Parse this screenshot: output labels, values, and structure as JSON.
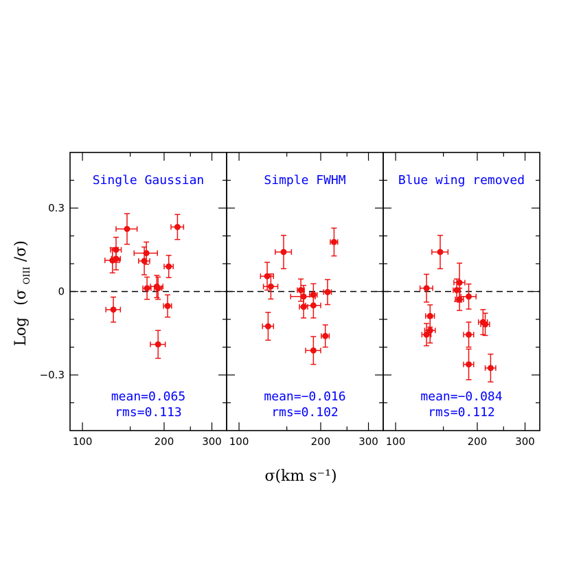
{
  "chart_data": {
    "type": "scatter",
    "xlabel": "σ(km s⁻¹)",
    "ylabel_main": "Log",
    "ylabel_ratio": "(σ",
    "ylabel_sub": "OIII",
    "ylabel_tail": "/σ)",
    "x_scale": "log",
    "xlim": [
      90,
      340
    ],
    "ylim": [
      -0.5,
      0.5
    ],
    "x_ticks": [
      {
        "v": 100,
        "label": "100"
      },
      {
        "v": 200,
        "label": "200"
      },
      {
        "v": 300,
        "label": "300"
      }
    ],
    "y_ticks": [
      {
        "v": 0.3,
        "label": "0.3"
      },
      {
        "v": 0,
        "label": "0"
      },
      {
        "v": -0.3,
        "label": "−0.3"
      }
    ],
    "reference_line": 0,
    "colors": {
      "points": "#ee1111",
      "text": "#0000ff",
      "frame": "#000000"
    },
    "panels": [
      {
        "title": "Single Gaussian",
        "mean_label": "mean=0.065",
        "rms_label": "rms=0.113",
        "points": [
          {
            "x": 129,
            "y": 0.112,
            "xerr": 8,
            "yerr": 0.045
          },
          {
            "x": 133,
            "y": 0.15,
            "xerr": 6,
            "yerr": 0.045
          },
          {
            "x": 133,
            "y": 0.118,
            "xerr": 5,
            "yerr": 0.04
          },
          {
            "x": 146,
            "y": 0.225,
            "xerr": 13,
            "yerr": 0.055
          },
          {
            "x": 169,
            "y": 0.11,
            "xerr": 8,
            "yerr": 0.05
          },
          {
            "x": 172,
            "y": 0.138,
            "xerr": 17,
            "yerr": 0.04
          },
          {
            "x": 173,
            "y": 0.012,
            "xerr": 6,
            "yerr": 0.04
          },
          {
            "x": 188,
            "y": 0.018,
            "xerr": 10,
            "yerr": 0.04
          },
          {
            "x": 190,
            "y": 0.012,
            "xerr": 6,
            "yerr": 0.04
          },
          {
            "x": 208,
            "y": 0.09,
            "xerr": 8,
            "yerr": 0.04
          },
          {
            "x": 224,
            "y": 0.232,
            "xerr": 12,
            "yerr": 0.045
          },
          {
            "x": 130,
            "y": -0.065,
            "xerr": 8,
            "yerr": 0.045
          },
          {
            "x": 206,
            "y": -0.052,
            "xerr": 7,
            "yerr": 0.04
          },
          {
            "x": 190,
            "y": -0.19,
            "xerr": 12,
            "yerr": 0.05
          }
        ]
      },
      {
        "title": "Simple FWHM",
        "mean_label": "mean=−0.016",
        "rms_label": "rms=0.102",
        "points": [
          {
            "x": 127,
            "y": 0.055,
            "xerr": 7,
            "yerr": 0.05
          },
          {
            "x": 131,
            "y": 0.018,
            "xerr": 8,
            "yerr": 0.045
          },
          {
            "x": 146,
            "y": 0.142,
            "xerr": 10,
            "yerr": 0.06
          },
          {
            "x": 169,
            "y": 0.005,
            "xerr": 5,
            "yerr": 0.04
          },
          {
            "x": 173,
            "y": -0.018,
            "xerr": 18,
            "yerr": 0.04
          },
          {
            "x": 173,
            "y": -0.055,
            "xerr": 6,
            "yerr": 0.04
          },
          {
            "x": 188,
            "y": -0.012,
            "xerr": 6,
            "yerr": 0.04
          },
          {
            "x": 188,
            "y": -0.05,
            "xerr": 12,
            "yerr": 0.045
          },
          {
            "x": 212,
            "y": -0.002,
            "xerr": 7,
            "yerr": 0.045
          },
          {
            "x": 224,
            "y": 0.178,
            "xerr": 7,
            "yerr": 0.05
          },
          {
            "x": 128,
            "y": -0.125,
            "xerr": 6,
            "yerr": 0.05
          },
          {
            "x": 208,
            "y": -0.16,
            "xerr": 7,
            "yerr": 0.04
          },
          {
            "x": 188,
            "y": -0.212,
            "xerr": 12,
            "yerr": 0.05
          }
        ]
      },
      {
        "title": "Blue wing removed",
        "mean_label": "mean=−0.084",
        "rms_label": "rms=0.112",
        "points": [
          {
            "x": 130,
            "y": 0.012,
            "xerr": 7,
            "yerr": 0.05
          },
          {
            "x": 146,
            "y": 0.142,
            "xerr": 10,
            "yerr": 0.06
          },
          {
            "x": 168,
            "y": 0.005,
            "xerr": 5,
            "yerr": 0.04
          },
          {
            "x": 172,
            "y": 0.032,
            "xerr": 8,
            "yerr": 0.07
          },
          {
            "x": 172,
            "y": -0.028,
            "xerr": 6,
            "yerr": 0.04
          },
          {
            "x": 186,
            "y": -0.018,
            "xerr": 12,
            "yerr": 0.045
          },
          {
            "x": 134,
            "y": -0.088,
            "xerr": 5,
            "yerr": 0.04
          },
          {
            "x": 134,
            "y": -0.14,
            "xerr": 6,
            "yerr": 0.045
          },
          {
            "x": 130,
            "y": -0.155,
            "xerr": 5,
            "yerr": 0.04
          },
          {
            "x": 186,
            "y": -0.155,
            "xerr": 8,
            "yerr": 0.045
          },
          {
            "x": 210,
            "y": -0.11,
            "xerr": 8,
            "yerr": 0.045
          },
          {
            "x": 214,
            "y": -0.118,
            "xerr": 8,
            "yerr": 0.04
          },
          {
            "x": 186,
            "y": -0.262,
            "xerr": 8,
            "yerr": 0.055
          },
          {
            "x": 224,
            "y": -0.275,
            "xerr": 10,
            "yerr": 0.05
          }
        ]
      }
    ]
  }
}
